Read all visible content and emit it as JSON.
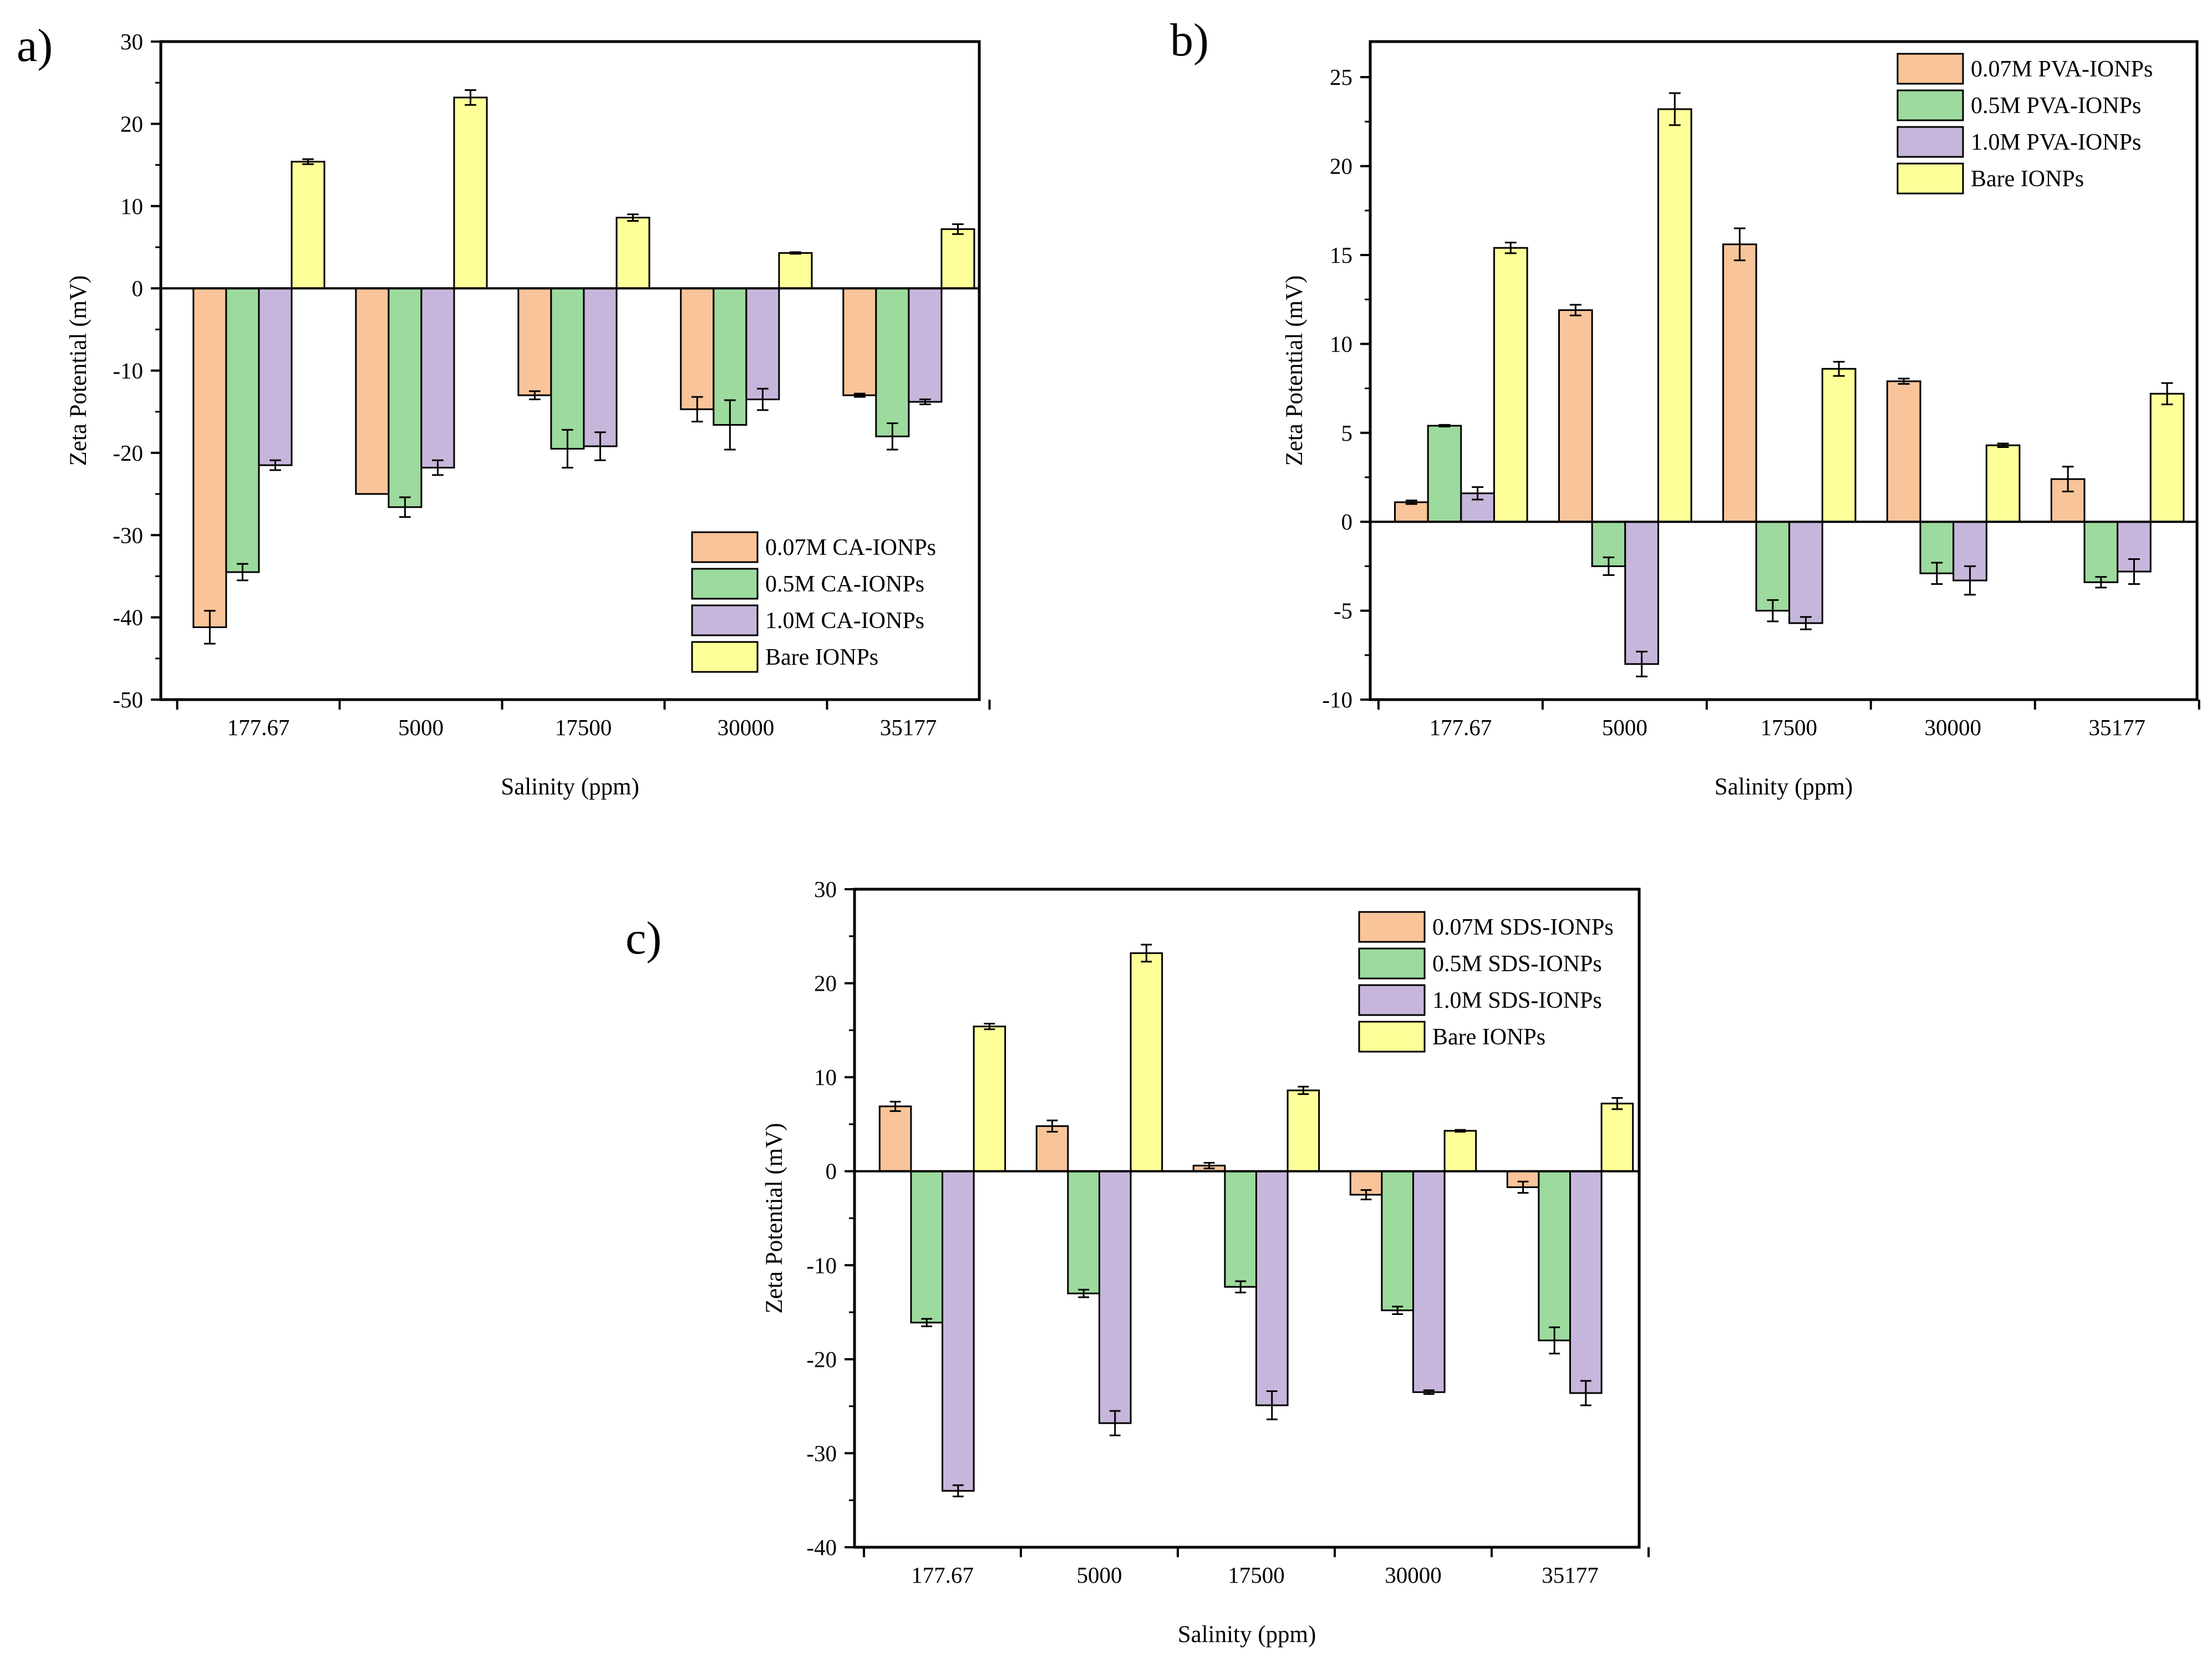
{
  "figure": {
    "colors": {
      "s1": "#F9C499",
      "s2": "#9DDA9D",
      "s3": "#C7B6DB",
      "bare": "#FFFF9A",
      "stroke": "#000000"
    }
  },
  "chart_data": [
    {
      "panel_label": "a)",
      "type": "bar",
      "ylabel": "Zeta Potential (mV)",
      "xlabel": "Salinity (ppm)",
      "ylim": [
        -50,
        30
      ],
      "yticks": [
        30,
        20,
        10,
        0,
        -10,
        -20,
        -30,
        -40,
        -50
      ],
      "ytick_labels": [
        "30",
        "20",
        "10",
        "0",
        "-10",
        "-20",
        "-30",
        "-40",
        "-50"
      ],
      "categories": [
        "177.67",
        "5000",
        "17500",
        "30000",
        "35177"
      ],
      "legend_position": "bottom-right",
      "series": [
        {
          "name": "0.07M CA-IONPs",
          "color_key": "s1",
          "values": [
            -41.2,
            -25.0,
            -13.0,
            -14.7,
            -13.0
          ],
          "errors": [
            2.0,
            0.0,
            0.5,
            1.5,
            0.2
          ]
        },
        {
          "name": "0.5M CA-IONPs",
          "color_key": "s2",
          "values": [
            -34.5,
            -26.6,
            -19.5,
            -16.6,
            -18.0
          ],
          "errors": [
            1.0,
            1.2,
            2.3,
            3.0,
            1.6
          ]
        },
        {
          "name": "1.0M CA-IONPs",
          "color_key": "s3",
          "values": [
            -21.5,
            -21.8,
            -19.2,
            -13.5,
            -13.8
          ],
          "errors": [
            0.6,
            0.9,
            1.7,
            1.3,
            0.3
          ]
        },
        {
          "name": "Bare IONPs",
          "color_key": "bare",
          "values": [
            15.4,
            23.2,
            8.6,
            4.3,
            7.2
          ],
          "errors": [
            0.3,
            0.9,
            0.4,
            0.1,
            0.6
          ]
        }
      ]
    },
    {
      "panel_label": "b)",
      "type": "bar",
      "ylabel": "Zeta Potential (mV)",
      "xlabel": "Salinity (ppm)",
      "ylim": [
        -10,
        27
      ],
      "yticks": [
        25,
        20,
        15,
        10,
        5,
        0,
        -5,
        -10
      ],
      "ytick_labels": [
        "25",
        "20",
        "15",
        "10",
        "5",
        "0",
        "-5",
        "-10"
      ],
      "categories": [
        "177.67",
        "5000",
        "17500",
        "30000",
        "35177"
      ],
      "legend_position": "top-right",
      "series": [
        {
          "name": "0.07M PVA-IONPs",
          "color_key": "s1",
          "values": [
            1.1,
            11.9,
            15.6,
            7.9,
            2.4
          ],
          "errors": [
            0.1,
            0.3,
            0.9,
            0.15,
            0.7
          ]
        },
        {
          "name": "0.5M PVA-IONPs",
          "color_key": "s2",
          "values": [
            5.4,
            -2.5,
            -5.0,
            -2.9,
            -3.4
          ],
          "errors": [
            0.05,
            0.5,
            0.6,
            0.6,
            0.3
          ]
        },
        {
          "name": "1.0M PVA-IONPs",
          "color_key": "s3",
          "values": [
            1.6,
            -8.0,
            -5.7,
            -3.3,
            -2.8
          ],
          "errors": [
            0.35,
            0.7,
            0.35,
            0.8,
            0.7
          ]
        },
        {
          "name": "Bare IONPs",
          "color_key": "bare",
          "values": [
            15.4,
            23.2,
            8.6,
            4.3,
            7.2
          ],
          "errors": [
            0.3,
            0.9,
            0.4,
            0.1,
            0.6
          ]
        }
      ]
    },
    {
      "panel_label": "c)",
      "type": "bar",
      "ylabel": "Zeta Potential (mV)",
      "xlabel": "Salinity (ppm)",
      "ylim": [
        -40,
        30
      ],
      "yticks": [
        30,
        20,
        10,
        0,
        -10,
        -20,
        -30,
        -40
      ],
      "ytick_labels": [
        "30",
        "20",
        "10",
        "0",
        "-10",
        "-20",
        "-30",
        "-40"
      ],
      "categories": [
        "177.67",
        "5000",
        "17500",
        "30000",
        "35177"
      ],
      "legend_position": "top-right",
      "series": [
        {
          "name": "0.07M SDS-IONPs",
          "color_key": "s1",
          "values": [
            6.9,
            4.8,
            0.6,
            -2.5,
            -1.7
          ],
          "errors": [
            0.5,
            0.6,
            0.3,
            0.5,
            0.6
          ]
        },
        {
          "name": "0.5M SDS-IONPs",
          "color_key": "s2",
          "values": [
            -16.1,
            -13.0,
            -12.3,
            -14.8,
            -18.0
          ],
          "errors": [
            0.4,
            0.4,
            0.6,
            0.4,
            1.4
          ]
        },
        {
          "name": "1.0M SDS-IONPs",
          "color_key": "s3",
          "values": [
            -34.0,
            -26.8,
            -24.9,
            -23.5,
            -23.6
          ],
          "errors": [
            0.6,
            1.3,
            1.5,
            0.2,
            1.3
          ]
        },
        {
          "name": "Bare IONPs",
          "color_key": "bare",
          "values": [
            15.4,
            23.2,
            8.6,
            4.3,
            7.2
          ],
          "errors": [
            0.3,
            0.9,
            0.4,
            0.1,
            0.6
          ]
        }
      ]
    }
  ]
}
